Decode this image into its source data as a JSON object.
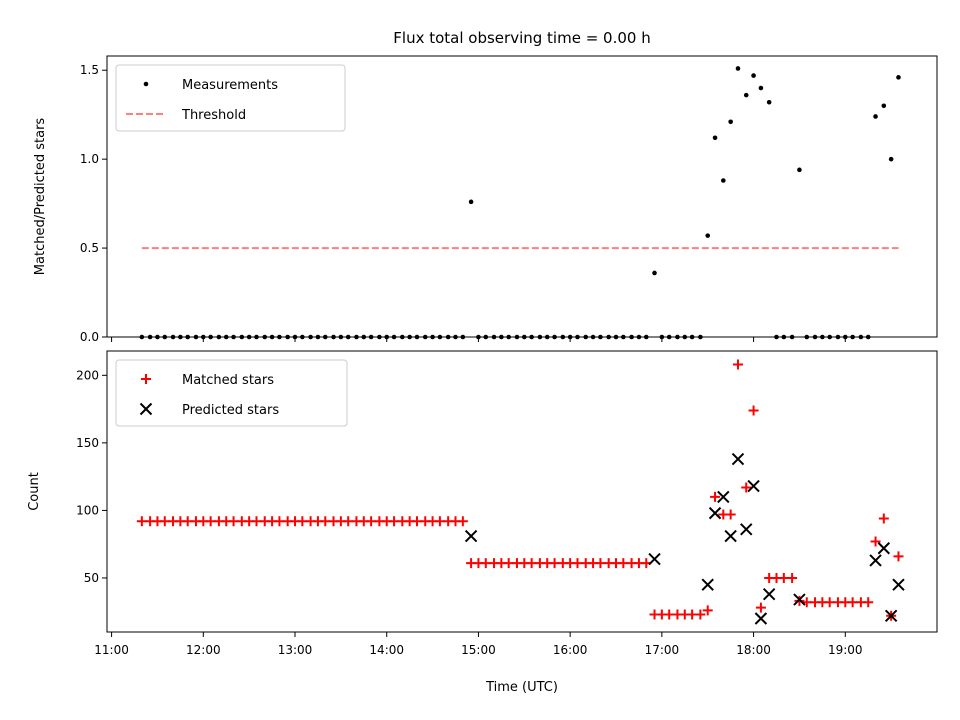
{
  "chart_data": [
    {
      "type": "scatter",
      "title": "Flux total observing time = 0.00 h",
      "xlabel": "",
      "ylabel": "Matched/Predicted stars",
      "xlim": [
        10.95,
        20.0
      ],
      "ylim": [
        0,
        1.58
      ],
      "yticks": [
        0,
        0.5,
        1.0,
        1.5
      ],
      "ytick_labels": [
        "0.0",
        "0.5",
        "1.0",
        "1.5"
      ],
      "legend_position": "upper-left",
      "series": [
        {
          "name": "Measurements",
          "kind": "points",
          "color": "#000000",
          "x": [
            11.33,
            11.42,
            11.5,
            11.58,
            11.67,
            11.75,
            11.83,
            11.92,
            12.0,
            12.08,
            12.17,
            12.25,
            12.33,
            12.42,
            12.5,
            12.58,
            12.67,
            12.75,
            12.83,
            12.92,
            13.0,
            13.08,
            13.17,
            13.25,
            13.33,
            13.42,
            13.5,
            13.58,
            13.67,
            13.75,
            13.83,
            13.92,
            14.0,
            14.08,
            14.17,
            14.25,
            14.33,
            14.42,
            14.5,
            14.58,
            14.67,
            14.75,
            14.83,
            14.92,
            15.0,
            15.08,
            15.17,
            15.25,
            15.33,
            15.42,
            15.5,
            15.58,
            15.67,
            15.75,
            15.83,
            15.92,
            16.0,
            16.08,
            16.17,
            16.25,
            16.33,
            16.42,
            16.5,
            16.58,
            16.67,
            16.75,
            16.83,
            16.92,
            17.0,
            17.08,
            17.17,
            17.25,
            17.33,
            17.42,
            17.5,
            17.58,
            17.67,
            17.75,
            17.83,
            17.92,
            18.0,
            18.08,
            18.17,
            18.25,
            18.33,
            18.42,
            18.5,
            18.58,
            18.67,
            18.75,
            18.83,
            18.92,
            19.0,
            19.08,
            19.17,
            19.25,
            19.33,
            19.42,
            19.5,
            19.58
          ],
          "y": [
            0,
            0,
            0,
            0,
            0,
            0,
            0,
            0,
            0,
            0,
            0,
            0,
            0,
            0,
            0,
            0,
            0,
            0,
            0,
            0,
            0,
            0,
            0,
            0,
            0,
            0,
            0,
            0,
            0,
            0,
            0,
            0,
            0,
            0,
            0,
            0,
            0,
            0,
            0,
            0,
            0,
            0,
            0,
            0.76,
            0,
            0,
            0,
            0,
            0,
            0,
            0,
            0,
            0,
            0,
            0,
            0,
            0,
            0,
            0,
            0,
            0,
            0,
            0,
            0,
            0,
            0,
            0,
            0.36,
            0,
            0,
            0,
            0,
            0,
            0,
            0.57,
            1.12,
            0.88,
            1.21,
            1.51,
            1.36,
            1.47,
            1.4,
            1.32,
            0,
            0,
            0,
            0.94,
            0,
            0,
            0,
            0,
            0,
            0,
            0,
            0,
            0,
            1.24,
            1.3,
            1.0,
            1.46
          ]
        },
        {
          "name": "Threshold",
          "kind": "dashed-line",
          "color": "#ff7f7f",
          "x": [
            11.33,
            19.58
          ],
          "y": [
            0.5,
            0.5
          ]
        }
      ]
    },
    {
      "type": "scatter",
      "title": "",
      "xlabel": "Time (UTC)",
      "ylabel": "Count",
      "xlim": [
        10.95,
        20.0
      ],
      "ylim": [
        10,
        218
      ],
      "yticks": [
        50,
        100,
        150,
        200
      ],
      "ytick_labels": [
        "50",
        "100",
        "150",
        "200"
      ],
      "xticks": [
        11,
        12,
        13,
        14,
        15,
        16,
        17,
        18,
        19
      ],
      "xtick_labels": [
        "11:00",
        "12:00",
        "13:00",
        "14:00",
        "15:00",
        "16:00",
        "17:00",
        "18:00",
        "19:00"
      ],
      "legend_position": "upper-left",
      "series": [
        {
          "name": "Matched stars",
          "kind": "plus",
          "color": "#ff0000",
          "x": [
            11.33,
            11.42,
            11.5,
            11.58,
            11.67,
            11.75,
            11.83,
            11.92,
            12.0,
            12.08,
            12.17,
            12.25,
            12.33,
            12.42,
            12.5,
            12.58,
            12.67,
            12.75,
            12.83,
            12.92,
            13.0,
            13.08,
            13.17,
            13.25,
            13.33,
            13.42,
            13.5,
            13.58,
            13.67,
            13.75,
            13.83,
            13.92,
            14.0,
            14.08,
            14.17,
            14.25,
            14.33,
            14.42,
            14.5,
            14.58,
            14.67,
            14.75,
            14.83,
            14.92,
            15.0,
            15.08,
            15.17,
            15.25,
            15.33,
            15.42,
            15.5,
            15.58,
            15.67,
            15.75,
            15.83,
            15.92,
            16.0,
            16.08,
            16.17,
            16.25,
            16.33,
            16.42,
            16.5,
            16.58,
            16.67,
            16.75,
            16.83,
            16.92,
            17.0,
            17.08,
            17.17,
            17.25,
            17.33,
            17.42,
            17.5,
            17.58,
            17.67,
            17.75,
            17.83,
            17.92,
            18.0,
            18.08,
            18.17,
            18.25,
            18.33,
            18.42,
            18.5,
            18.58,
            18.67,
            18.75,
            18.83,
            18.92,
            19.0,
            19.08,
            19.17,
            19.25,
            19.33,
            19.42,
            19.5,
            19.58
          ],
          "y": [
            92,
            92,
            92,
            92,
            92,
            92,
            92,
            92,
            92,
            92,
            92,
            92,
            92,
            92,
            92,
            92,
            92,
            92,
            92,
            92,
            92,
            92,
            92,
            92,
            92,
            92,
            92,
            92,
            92,
            92,
            92,
            92,
            92,
            92,
            92,
            92,
            92,
            92,
            92,
            92,
            92,
            92,
            92,
            61,
            61,
            61,
            61,
            61,
            61,
            61,
            61,
            61,
            61,
            61,
            61,
            61,
            61,
            61,
            61,
            61,
            61,
            61,
            61,
            61,
            61,
            61,
            61,
            23,
            23,
            23,
            23,
            23,
            23,
            23,
            26,
            110,
            97,
            97,
            208,
            117,
            174,
            28,
            50,
            50,
            50,
            50,
            33,
            32,
            32,
            32,
            32,
            32,
            32,
            32,
            32,
            32,
            77,
            94,
            22,
            66
          ]
        },
        {
          "name": "Predicted stars",
          "kind": "cross",
          "color": "#000000",
          "x": [
            14.92,
            16.92,
            17.5,
            17.58,
            17.67,
            17.75,
            17.83,
            17.92,
            18.0,
            18.08,
            18.17,
            18.5,
            19.33,
            19.42,
            19.5,
            19.58
          ],
          "y": [
            81,
            64,
            45,
            98,
            110,
            81,
            138,
            86,
            118,
            20,
            38,
            34,
            63,
            72,
            22,
            45
          ]
        }
      ]
    }
  ]
}
